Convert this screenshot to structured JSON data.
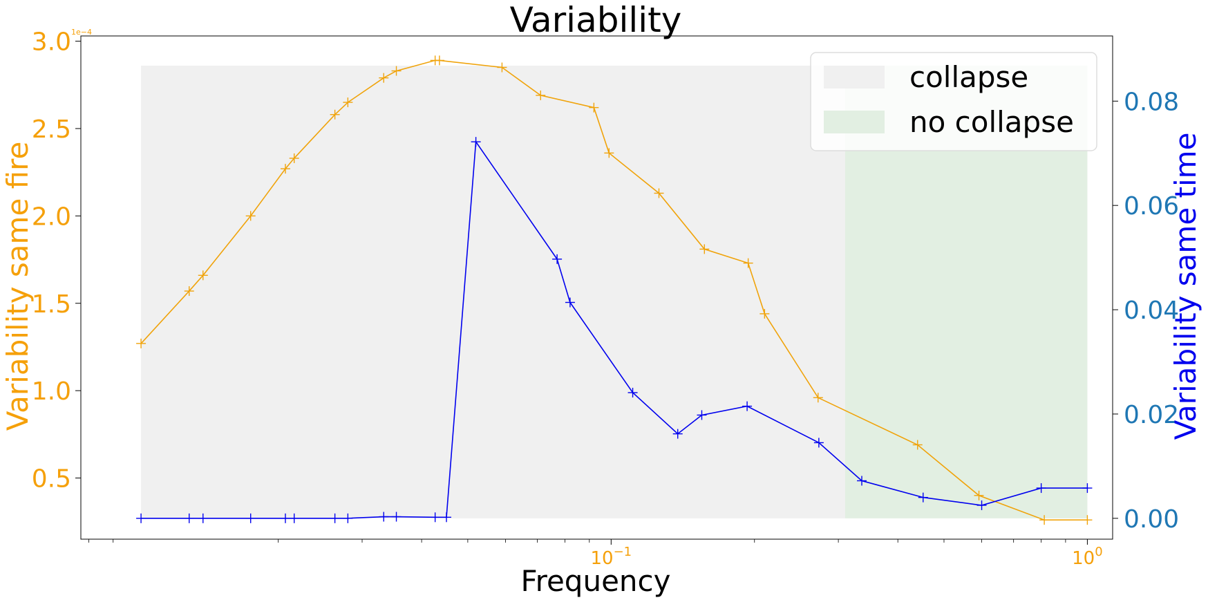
{
  "chart_data": {
    "type": "line",
    "title": "Variability",
    "xlabel": "Frequency",
    "ylabel_left": "Variability same fire",
    "ylabel_right": "Variability same time",
    "x_scale": "log",
    "xlim": [
      0.0077,
      1.13
    ],
    "ylim_left": [
      1.5e-05,
      0.000303
    ],
    "ylim_right": [
      -0.004,
      0.0925
    ],
    "left_offset_label": "1e−4",
    "x_ticks": [
      {
        "value": 0.1,
        "base": "10",
        "exp": "−1"
      },
      {
        "value": 1.0,
        "base": "10",
        "exp": "0"
      }
    ],
    "y_ticks_left": [
      {
        "value": 5e-05,
        "label": "0.5"
      },
      {
        "value": 0.0001,
        "label": "1.0"
      },
      {
        "value": 0.00015,
        "label": "1.5"
      },
      {
        "value": 0.0002,
        "label": "2.0"
      },
      {
        "value": 0.00025,
        "label": "2.5"
      },
      {
        "value": 0.0003,
        "label": "3.0"
      }
    ],
    "y_ticks_right": [
      {
        "value": 0.0,
        "label": "0.00"
      },
      {
        "value": 0.02,
        "label": "0.02"
      },
      {
        "value": 0.04,
        "label": "0.04"
      },
      {
        "value": 0.06,
        "label": "0.06"
      },
      {
        "value": 0.08,
        "label": "0.08"
      }
    ],
    "regions": [
      {
        "name": "collapse",
        "x0": 0.0103,
        "x1": 1.0,
        "y0": 0.0,
        "y1": 0.0868,
        "color": "#f0f0f0"
      },
      {
        "name": "no collapse",
        "x0": 0.31,
        "x1": 1.0,
        "y0": 0.0,
        "y1": 0.0868,
        "color": "#e2efe2"
      }
    ],
    "legend_position": "upper right",
    "series": [
      {
        "name": "Variability same fire",
        "axis": "left",
        "color": "#f0a30a",
        "x": [
          0.0103,
          0.013,
          0.0139,
          0.0175,
          0.0207,
          0.0216,
          0.0263,
          0.028,
          0.0333,
          0.0354,
          0.0427,
          0.0436,
          0.059,
          0.0711,
          0.092,
          0.099,
          0.126,
          0.157,
          0.194,
          0.21,
          0.272,
          0.44,
          0.592,
          0.812,
          1.0
        ],
        "y": [
          0.000127,
          0.000157,
          0.000166,
          0.0002,
          0.000227,
          0.000233,
          0.000258,
          0.000265,
          0.000279,
          0.000283,
          0.000289,
          0.000289,
          0.000285,
          0.000269,
          0.000262,
          0.000236,
          0.000213,
          0.000181,
          0.000173,
          0.000144,
          9.6e-05,
          6.9e-05,
          4e-05,
          2.6e-05,
          2.6e-05
        ]
      },
      {
        "name": "Variability same time",
        "axis": "right",
        "color": "#0000ee",
        "x": [
          0.0103,
          0.013,
          0.0139,
          0.0175,
          0.0207,
          0.0216,
          0.0263,
          0.028,
          0.0333,
          0.0354,
          0.0427,
          0.0451,
          0.052,
          0.077,
          0.082,
          0.111,
          0.138,
          0.155,
          0.193,
          0.273,
          0.336,
          0.452,
          0.6,
          0.8,
          1.0
        ],
        "y": [
          0.0,
          0.0,
          0.0,
          0.0,
          0.0,
          0.0,
          0.0,
          0.0,
          0.0003,
          0.0003,
          0.0002,
          0.0002,
          0.0722,
          0.0497,
          0.0414,
          0.0241,
          0.0162,
          0.0198,
          0.0215,
          0.0145,
          0.0072,
          0.004,
          0.0025,
          0.0058,
          0.0058
        ]
      }
    ]
  }
}
